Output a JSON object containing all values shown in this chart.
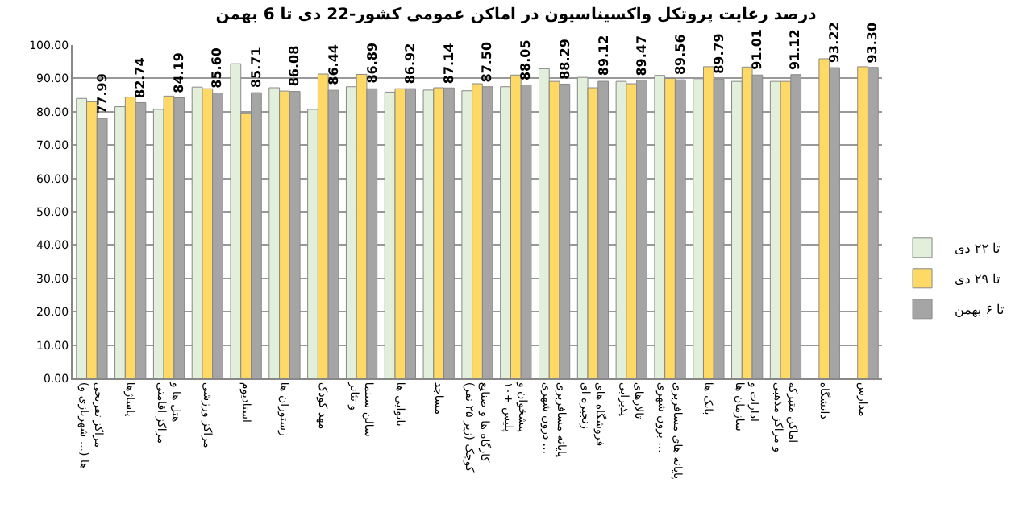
{
  "chart_data": {
    "type": "bar",
    "title": "درصد رعایت پروتکل واکسیناسیون در اماکن عمومی کشور-22 دی تا 6 بهمن",
    "categories": [
      "مراکز تفریحی (شهربازی و ...) ها",
      "پاساژها",
      "هتل ها و مراکز اقامتی",
      "مراکز ورزشی",
      "استادیوم",
      "رستوران ها",
      "مهد کودک",
      "سالن سینما و تئاتر",
      "نانوایی ها",
      "مساجد",
      "کارگاه ها و صنایع کوچک (زیر ۲۵ نفر)",
      "پیشخوان و پلیس +۱۰",
      "پایانه مسافربری درون شهری ...",
      "فروشگاه های زنجیره ای",
      "تالارهای پذیرایی",
      "پایانه های مسافربری برون شهری ...",
      "بانک ها",
      "ادارات و سازمان ها",
      "اماکن متبرکه و مراکز مذهبی",
      "دانشگاه",
      "مدارس"
    ],
    "series": [
      {
        "name": "تا ۲۲ دی",
        "color": "#e2efda",
        "values": [
          84,
          81.5,
          80.7,
          87.4,
          94.4,
          87.2,
          80.7,
          87.5,
          85.9,
          86.5,
          86.3,
          87.5,
          92.9,
          90.3,
          89.1,
          90.9,
          89.6,
          89.1,
          89.1,
          null,
          null
        ]
      },
      {
        "name": "تا ۲۹ دی",
        "color": "#ffd966",
        "values": [
          83,
          84.4,
          84.7,
          86.9,
          79.4,
          86.2,
          91.3,
          91.2,
          86.9,
          87.2,
          88.4,
          91,
          89.1,
          87.2,
          88.4,
          90,
          93.5,
          93.4,
          89.1,
          95.9,
          93.5
        ]
      },
      {
        "name": "تا ۶ بهمن",
        "color": "#a5a5a5",
        "values": [
          77.99,
          82.74,
          84.19,
          85.6,
          85.71,
          86.08,
          86.44,
          86.89,
          86.92,
          87.14,
          87.5,
          88.05,
          88.29,
          89.12,
          89.47,
          89.56,
          89.79,
          91.01,
          91.12,
          93.22,
          93.3
        ],
        "value_labels": [
          "77.99",
          "82.74",
          "84.19",
          "85.60",
          "85.71",
          "86.08",
          "86.44",
          "86.89",
          "86.92",
          "87.14",
          "87.50",
          "88.05",
          "88.29",
          "89.12",
          "89.47",
          "89.56",
          "89.79",
          "91.01",
          "91.12",
          "93.22",
          "93.30"
        ]
      }
    ],
    "ylim": [
      0,
      100
    ],
    "yticks": [
      {
        "value": 0,
        "label": "0.00"
      },
      {
        "value": 10,
        "label": "10.00"
      },
      {
        "value": 20,
        "label": "20.00"
      },
      {
        "value": 30,
        "label": "30.00"
      },
      {
        "value": 40,
        "label": "40.00"
      },
      {
        "value": 50,
        "label": "50.00"
      },
      {
        "value": 60,
        "label": "60.00"
      },
      {
        "value": 70,
        "label": "70.00"
      },
      {
        "value": 80,
        "label": "80.00"
      },
      {
        "value": 90,
        "label": "90.00"
      },
      {
        "value": 100,
        "label": "100.00"
      }
    ],
    "grid": "y",
    "legend": "right"
  }
}
